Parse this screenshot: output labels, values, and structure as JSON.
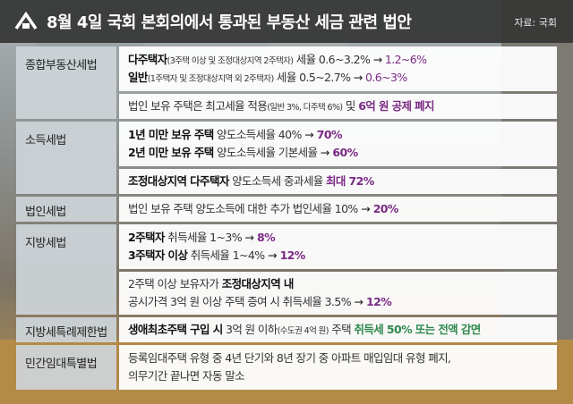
{
  "header": {
    "title": "8월 4일 국회 본회의에서 통과된 부동산 세금 관련 법안",
    "source": "자료: 국회"
  },
  "rows": {
    "jongbu": {
      "category": "종합부동산세법",
      "l1_a": "다주택자",
      "l1_b": "(3주택 이상 및 조정대상지역 2주택자)",
      "l1_c": " 세율  0.6~3.2% ",
      "l1_arrow": "→",
      "l1_d": " 1.2~6%",
      "l2_a": "일반",
      "l2_b": "(1주택자 및 조정대상지역 외 2주택자)",
      "l2_c": " 세율  0.5~2.7% ",
      "l2_arrow": "→",
      "l2_d": " 0.6~3%",
      "l3_a": "법인 보유 주택은 최고세율 적용",
      "l3_b": "(일반 3%, 다주택 6%)",
      "l3_c": " 및 ",
      "l3_d": "6억 원 공제 폐지"
    },
    "sodeuk": {
      "category": "소득세법",
      "l1_a": "1년 미만 보유 주택",
      "l1_b": " 양도소득세율  40% ",
      "l1_arrow": "→",
      "l1_c": " 70%",
      "l2_a": "2년 미만 보유 주택",
      "l2_b": " 양도소득세율  기본세율 ",
      "l2_arrow": "→",
      "l2_c": " 60%",
      "l3_a": "조정대상지역 다주택자",
      "l3_b": " 양도소득세 중과세율 ",
      "l3_c": "최대 72%"
    },
    "beobin": {
      "category": "법인세법",
      "l1_a": "법인 보유 주택 양도소득에 대한 추가 법인세율  10% ",
      "l1_arrow": "→",
      "l1_b": " 20%"
    },
    "jibang": {
      "category": "지방세법",
      "l1_a": "2주택자",
      "l1_b": " 취득세율  1~3% ",
      "l1_arrow": "→",
      "l1_c": " 8%",
      "l2_a": "3주택자 이상",
      "l2_b": " 취득세율  1~4% ",
      "l2_arrow": "→",
      "l2_c": " 12%",
      "l3_a": "2주택 이상 보유자가 ",
      "l3_b": "조정대상지역 내",
      "l4_a": "공시가격 3억 원 이상 주택 증여 시 취득세율  3.5% ",
      "l4_arrow": "→",
      "l4_b": " 12%"
    },
    "teukrye": {
      "category": "지방세특례제한법",
      "l1_a": "생애최초주택 구입 시",
      "l1_b": " 3억 원 이하",
      "l1_c": "(수도권 4억 원)",
      "l1_d": " 주택 ",
      "l1_e": "취득세 50% 또는 전액 감면"
    },
    "imdae": {
      "category": "민간임대특별법",
      "l1": "등록임대주택 유형 중 4년 단기와 8년 장기 중 아파트 매입임대 유형 폐지,",
      "l2": "의무기간 끝나면 자동 말소"
    }
  },
  "colors": {
    "header_bg": "#343434",
    "category_bg": "#cdd4d8",
    "highlight_purple": "#7a2a84",
    "highlight_green": "#2f8a4f"
  },
  "icons": {
    "logo": "home-arrow-icon"
  }
}
